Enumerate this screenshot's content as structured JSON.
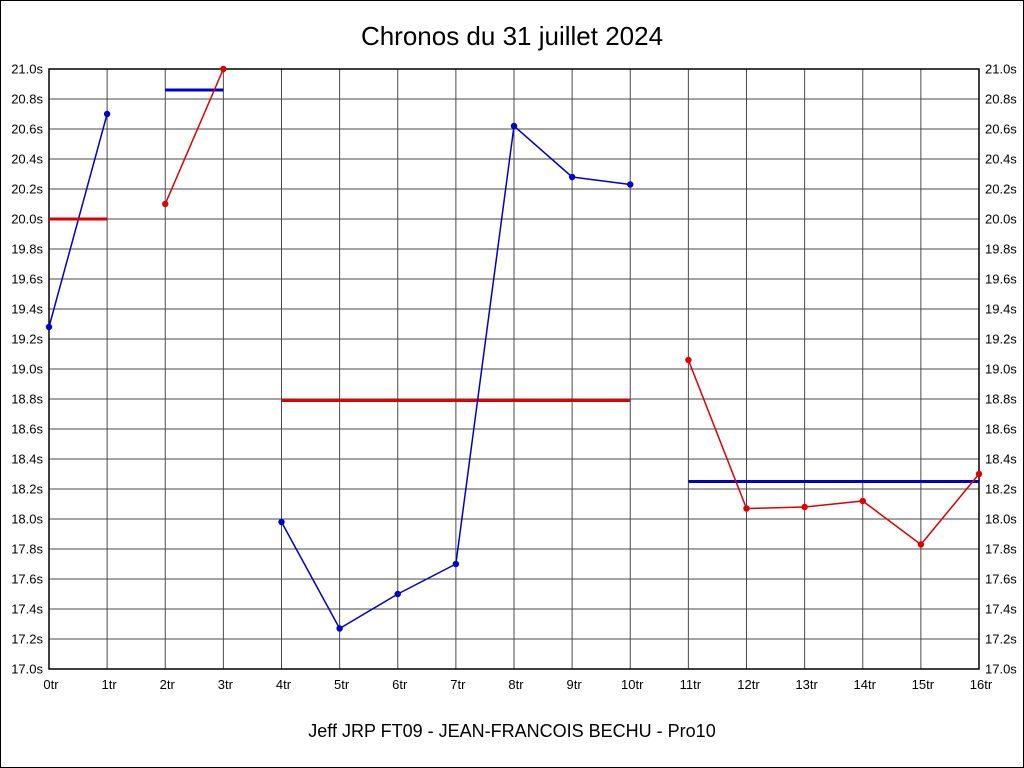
{
  "title": "Chronos du 31 juillet 2024",
  "caption": "Jeff JRP FT09 - JEAN-FRANCOIS BECHU - Pro10",
  "chart_data": {
    "type": "line",
    "title": "Chronos du 31 juillet 2024",
    "xlabel": "",
    "ylabel": "",
    "x_range": [
      0,
      16
    ],
    "y_range": [
      17.0,
      21.0
    ],
    "y_tick_step": 0.2,
    "grid": true,
    "legend": "none",
    "x_tick_labels": [
      "0tr",
      "1tr",
      "2tr",
      "3tr",
      "4tr",
      "5tr",
      "6tr",
      "7tr",
      "8tr",
      "9tr",
      "10tr",
      "11tr",
      "12tr",
      "13tr",
      "14tr",
      "15tr",
      "16tr"
    ],
    "y_tick_labels": [
      "17.0s",
      "17.2s",
      "17.4s",
      "17.6s",
      "17.8s",
      "18.0s",
      "18.2s",
      "18.4s",
      "18.6s",
      "18.8s",
      "19.0s",
      "19.2s",
      "19.4s",
      "19.6s",
      "19.8s",
      "20.0s",
      "20.2s",
      "20.4s",
      "20.6s",
      "20.8s",
      "21.0s"
    ],
    "colors": {
      "blue": "#0000cc",
      "red": "#e00000",
      "grid": "#4a4a4a",
      "border": "#000000"
    },
    "series": [
      {
        "name": "segment-1-laps-blue",
        "color": "blue",
        "markers": true,
        "width": 1.5,
        "x": [
          0,
          1
        ],
        "y": [
          19.28,
          20.7
        ]
      },
      {
        "name": "segment-1-average-red",
        "color": "red",
        "markers": false,
        "width": 3,
        "x": [
          0,
          1
        ],
        "y": [
          20.0,
          20.0
        ]
      },
      {
        "name": "segment-2-average-blue",
        "color": "blue",
        "markers": false,
        "width": 3,
        "x": [
          2,
          3
        ],
        "y": [
          20.86,
          20.86
        ]
      },
      {
        "name": "segment-2-laps-red",
        "color": "red",
        "markers": true,
        "width": 1.5,
        "x": [
          2,
          3
        ],
        "y": [
          20.1,
          21.0
        ]
      },
      {
        "name": "segment-3-average-red",
        "color": "red",
        "markers": false,
        "width": 3,
        "x": [
          4,
          10
        ],
        "y": [
          18.79,
          18.79
        ]
      },
      {
        "name": "segment-3-laps-blue",
        "color": "blue",
        "markers": true,
        "width": 1.5,
        "x": [
          4,
          5,
          6,
          7,
          8,
          9,
          10
        ],
        "y": [
          17.98,
          17.27,
          17.5,
          17.7,
          20.62,
          20.28,
          20.23
        ]
      },
      {
        "name": "segment-4-average-blue",
        "color": "blue",
        "markers": false,
        "width": 3,
        "x": [
          11,
          16
        ],
        "y": [
          18.25,
          18.25
        ]
      },
      {
        "name": "segment-4-laps-red",
        "color": "red",
        "markers": true,
        "width": 1.5,
        "x": [
          11,
          12,
          13,
          14,
          15,
          16
        ],
        "y": [
          19.06,
          18.07,
          18.08,
          18.12,
          17.83,
          18.3
        ]
      }
    ]
  }
}
